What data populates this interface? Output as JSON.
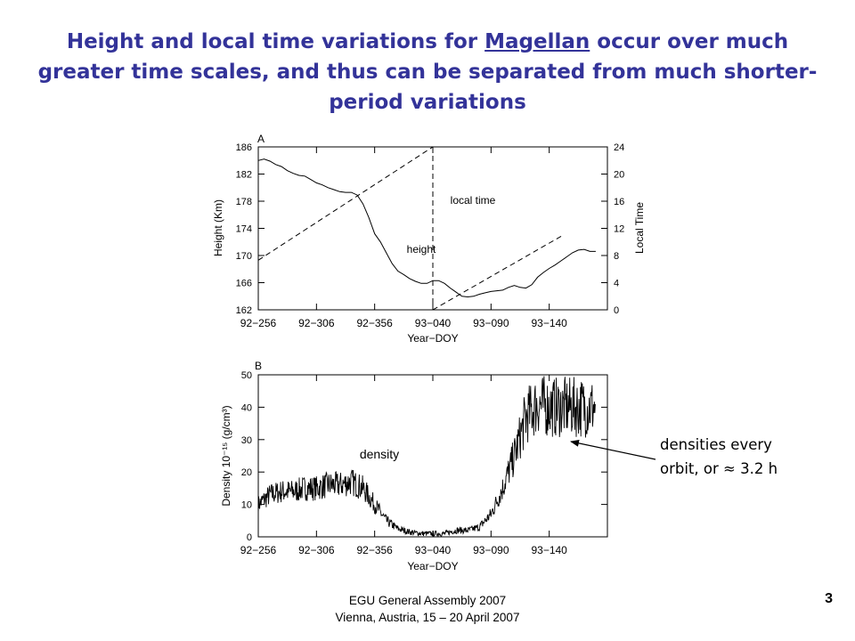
{
  "slide": {
    "title_parts": [
      "Height and local time variations for ",
      "Magellan",
      " occur over much greater time scales, and thus can be separated from much shorter-period variations"
    ],
    "annotation_line1": "densities every",
    "annotation_line2": "orbit, or ≈ 3.2 h",
    "footer_line1": "EGU General Assembly 2007",
    "footer_line2": "Vienna, Austria, 15 – 20 April 2007",
    "slide_number": "3"
  },
  "colors": {
    "title": "#333399",
    "ink": "#000000"
  },
  "chart_data": [
    {
      "type": "line",
      "panel_label": "A",
      "xlabel": "Year−DOY",
      "ylabel": "Height (Km)",
      "y2label": "Local Time",
      "x_tick_labels": [
        "92−256",
        "92−306",
        "92−356",
        "93−040",
        "93−090",
        "93−140"
      ],
      "xlim": [
        0,
        300
      ],
      "ylim": [
        162,
        186
      ],
      "yticks": [
        162,
        166,
        170,
        174,
        178,
        182,
        186
      ],
      "y2lim": [
        0,
        24
      ],
      "y2ticks": [
        0,
        4,
        8,
        12,
        16,
        20,
        24
      ],
      "series": [
        {
          "name": "height",
          "axis": "left",
          "style": "solid",
          "x": [
            0,
            5,
            10,
            15,
            20,
            25,
            30,
            35,
            40,
            45,
            50,
            55,
            60,
            65,
            70,
            75,
            80,
            85,
            90,
            95,
            100,
            105,
            110,
            115,
            120,
            125,
            130,
            135,
            140,
            145,
            150,
            155,
            160,
            165,
            170,
            175,
            180,
            185,
            190,
            195,
            200,
            205,
            210,
            215,
            220,
            225,
            230,
            235,
            240,
            245,
            250,
            255,
            260,
            265,
            270,
            275,
            280,
            285,
            290
          ],
          "y": [
            184.0,
            184.2,
            183.9,
            183.4,
            183.1,
            182.5,
            182.1,
            181.8,
            181.7,
            181.2,
            180.7,
            180.4,
            180.0,
            179.7,
            179.4,
            179.3,
            179.3,
            178.9,
            177.6,
            175.6,
            173.2,
            172.0,
            170.4,
            168.8,
            167.7,
            167.2,
            166.6,
            166.2,
            165.9,
            165.9,
            166.3,
            166.3,
            165.9,
            165.2,
            164.6,
            164.0,
            163.9,
            164.0,
            164.3,
            164.5,
            164.7,
            164.8,
            164.9,
            165.3,
            165.6,
            165.3,
            165.2,
            165.7,
            166.8,
            167.5,
            168.1,
            168.6,
            169.2,
            169.8,
            170.4,
            170.8,
            170.9,
            170.6,
            170.6
          ]
        },
        {
          "name": "local time",
          "axis": "right",
          "style": "dashed",
          "x": [
            0,
            150,
            150,
            262
          ],
          "y": [
            7.3,
            24,
            0,
            11
          ]
        }
      ],
      "annotations": [
        "local time",
        "height"
      ]
    },
    {
      "type": "line",
      "panel_label": "B",
      "xlabel": "Year−DOY",
      "ylabel": "Density 10⁻¹⁵ (g/cm³)",
      "x_tick_labels": [
        "92−256",
        "92−306",
        "92−356",
        "93−040",
        "93−090",
        "93−140"
      ],
      "xlim": [
        0,
        300
      ],
      "ylim": [
        0,
        50
      ],
      "yticks": [
        0,
        10,
        20,
        30,
        40,
        50
      ],
      "series": [
        {
          "name": "density",
          "style": "solid",
          "x": [
            0,
            10,
            20,
            30,
            40,
            50,
            60,
            70,
            80,
            90,
            100,
            110,
            120,
            130,
            140,
            150,
            160,
            170,
            180,
            190,
            200,
            210,
            220,
            230,
            240,
            250,
            260,
            270,
            280,
            290
          ],
          "y": [
            10,
            13,
            14,
            14,
            15,
            15,
            16,
            16,
            17,
            15,
            10,
            5,
            2.5,
            1.5,
            1,
            1,
            1,
            2,
            2,
            3,
            7,
            15,
            25,
            37,
            41,
            40,
            40,
            40,
            40,
            40
          ]
        }
      ],
      "annotations": [
        "density"
      ]
    }
  ]
}
